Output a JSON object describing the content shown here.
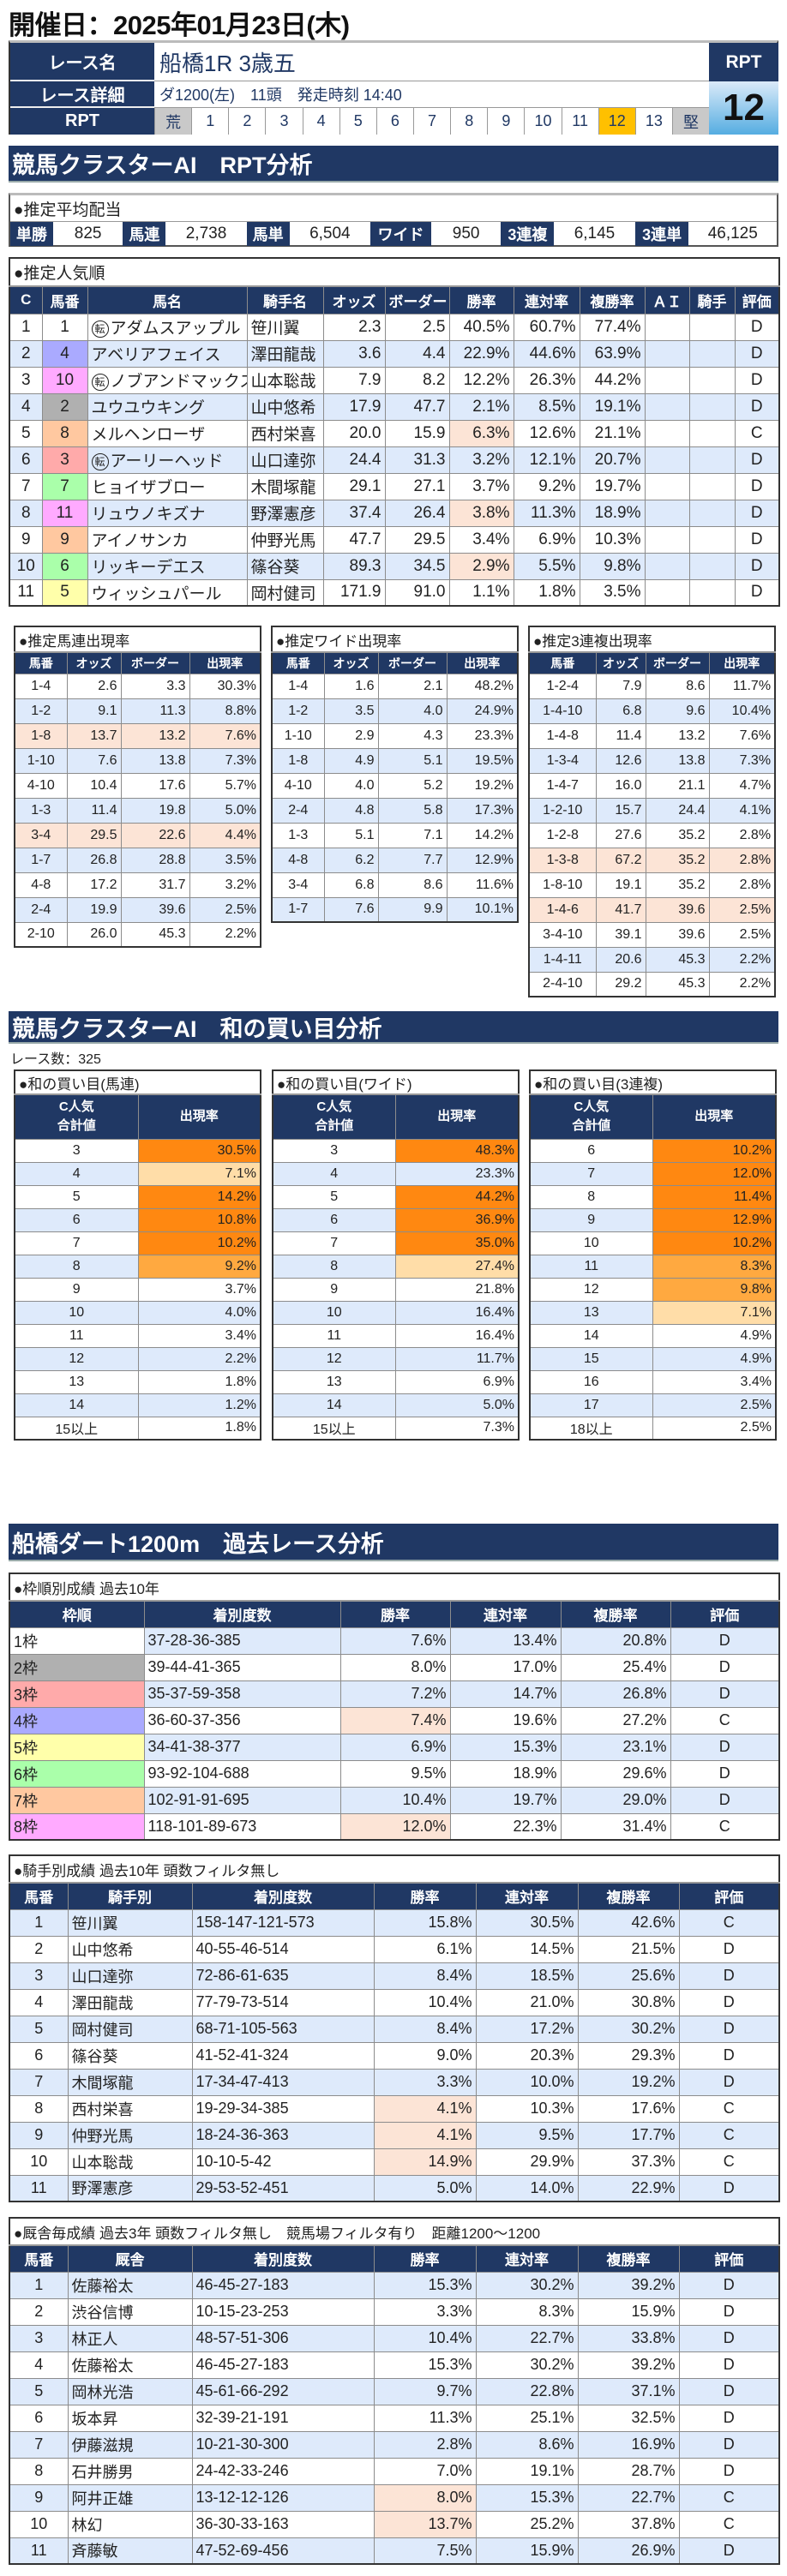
{
  "title": "開催日：2025年01月23日(木)",
  "race": {
    "label_name": "レース名",
    "name": "船橋1R 3歳五",
    "label_detail": "レース詳細",
    "detail": "ダ1200(左)　11頭　発走時刻 14:40",
    "label_rpt": "RPT",
    "scale": [
      "荒",
      "1",
      "2",
      "3",
      "4",
      "5",
      "6",
      "7",
      "8",
      "9",
      "10",
      "11",
      "12",
      "13",
      "堅"
    ],
    "selected": "12",
    "rpt_label": "RPT",
    "rpt_value": "12"
  },
  "colors": {
    "navy": "#203864",
    "stripe": "#deeafb",
    "highlight": "#fce4d6",
    "orange_dark": "#ff8811",
    "orange_mid": "#ffa940",
    "orange_light": "#ffdda8",
    "selected": "#ffc000",
    "frames": {
      "1": "#ffffff",
      "2": "#b0b0b0",
      "3": "#ffaaaa",
      "4": "#aaaaff",
      "5": "#ffffaa",
      "6": "#aaffaa",
      "7": "#ffc8a0",
      "8": "#ffaaff"
    }
  },
  "sections": {
    "rpt": "競馬クラスターAI　RPT分析",
    "sum": "競馬クラスターAI　和の買い目分析",
    "track": "船橋ダート1200m　過去レース分析"
  },
  "payout": {
    "title": "●推定平均配当",
    "items": [
      {
        "label": "単勝",
        "value": "825"
      },
      {
        "label": "馬連",
        "value": "2,738"
      },
      {
        "label": "馬単",
        "value": "6,504"
      },
      {
        "label": "ワイド",
        "value": "950"
      },
      {
        "label": "3連複",
        "value": "6,145"
      },
      {
        "label": "3連単",
        "value": "46,125"
      }
    ]
  },
  "popularity": {
    "title": "●推定人気順",
    "transfer_mark": "転",
    "transfer": [
      0,
      2,
      5
    ],
    "headers": [
      "C",
      "馬番",
      "馬名",
      "騎手名",
      "オッズ",
      "ボーダー",
      "勝率",
      "連対率",
      "複勝率",
      "ＡＩ",
      "騎手",
      "評価"
    ],
    "frames": [
      1,
      4,
      8,
      2,
      7,
      3,
      6,
      8,
      7,
      6,
      5
    ],
    "rows": [
      [
        "1",
        "1",
        "アダムスアップル",
        "笹川翼",
        "2.3",
        "2.5",
        "40.5%",
        "60.7%",
        "77.4%",
        "",
        "",
        "D"
      ],
      [
        "2",
        "4",
        "アベリアフェイス",
        "澤田龍哉",
        "3.6",
        "4.4",
        "22.9%",
        "44.6%",
        "63.9%",
        "",
        "",
        "D"
      ],
      [
        "3",
        "10",
        "ノブアンドマックス",
        "山本聡哉",
        "7.9",
        "8.2",
        "12.2%",
        "26.3%",
        "44.2%",
        "",
        "",
        "D"
      ],
      [
        "4",
        "2",
        "ユウユウキング",
        "山中悠希",
        "17.9",
        "47.7",
        "2.1%",
        "8.5%",
        "19.1%",
        "",
        "",
        "D"
      ],
      [
        "5",
        "8",
        "メルヘンローザ",
        "西村栄喜",
        "20.0",
        "15.9",
        "6.3%",
        "12.6%",
        "21.1%",
        "",
        "",
        "C"
      ],
      [
        "6",
        "3",
        "アーリーヘッド",
        "山口達弥",
        "24.4",
        "31.3",
        "3.2%",
        "12.1%",
        "20.7%",
        "",
        "",
        "D"
      ],
      [
        "7",
        "7",
        "ヒョイザブロー",
        "木間塚龍",
        "29.1",
        "27.1",
        "3.7%",
        "9.2%",
        "19.7%",
        "",
        "",
        "D"
      ],
      [
        "8",
        "11",
        "リュウノキズナ",
        "野澤憲彦",
        "37.4",
        "26.4",
        "3.8%",
        "11.3%",
        "18.9%",
        "",
        "",
        "D"
      ],
      [
        "9",
        "9",
        "アイノサンカ",
        "仲野光馬",
        "47.7",
        "29.5",
        "3.4%",
        "6.9%",
        "10.3%",
        "",
        "",
        "D"
      ],
      [
        "10",
        "6",
        "リッキーデエス",
        "篠谷葵",
        "89.3",
        "34.5",
        "2.9%",
        "5.5%",
        "9.8%",
        "",
        "",
        "D"
      ],
      [
        "11",
        "5",
        "ウィッシュパール",
        "岡村健司",
        "171.9",
        "91.0",
        "1.1%",
        "1.8%",
        "3.5%",
        "",
        "",
        "D"
      ]
    ],
    "hl": [
      [
        4,
        6
      ],
      [
        7,
        6
      ],
      [
        9,
        6
      ]
    ]
  },
  "quinella": {
    "title": "●推定馬連出現率",
    "headers": [
      "馬番",
      "オッズ",
      "ボーダー",
      "出現率"
    ],
    "rows": [
      [
        "1-4",
        "2.6",
        "3.3",
        "30.3%"
      ],
      [
        "1-2",
        "9.1",
        "11.3",
        "8.8%"
      ],
      [
        "1-8",
        "13.7",
        "13.2",
        "7.6%"
      ],
      [
        "1-10",
        "7.6",
        "13.8",
        "7.3%"
      ],
      [
        "4-10",
        "10.4",
        "17.6",
        "5.7%"
      ],
      [
        "1-3",
        "11.4",
        "19.8",
        "5.0%"
      ],
      [
        "3-4",
        "29.5",
        "22.6",
        "4.4%"
      ],
      [
        "1-7",
        "26.8",
        "28.8",
        "3.5%"
      ],
      [
        "4-8",
        "17.2",
        "31.7",
        "3.2%"
      ],
      [
        "2-4",
        "19.9",
        "39.6",
        "2.5%"
      ],
      [
        "2-10",
        "26.0",
        "45.3",
        "2.2%"
      ]
    ],
    "hl": [
      [
        2,
        -1
      ],
      [
        6,
        -1
      ]
    ]
  },
  "wide": {
    "title": "●推定ワイド出現率",
    "headers": [
      "馬番",
      "オッズ",
      "ボーダー",
      "出現率"
    ],
    "rows": [
      [
        "1-4",
        "1.6",
        "2.1",
        "48.2%"
      ],
      [
        "1-2",
        "3.5",
        "4.0",
        "24.9%"
      ],
      [
        "1-10",
        "2.9",
        "4.3",
        "23.3%"
      ],
      [
        "1-8",
        "4.9",
        "5.1",
        "19.5%"
      ],
      [
        "4-10",
        "4.0",
        "5.2",
        "19.2%"
      ],
      [
        "2-4",
        "4.8",
        "5.8",
        "17.3%"
      ],
      [
        "1-3",
        "5.1",
        "7.1",
        "14.2%"
      ],
      [
        "4-8",
        "6.2",
        "7.7",
        "12.9%"
      ],
      [
        "3-4",
        "6.8",
        "8.6",
        "11.6%"
      ],
      [
        "1-7",
        "7.6",
        "9.9",
        "10.1%"
      ]
    ],
    "hl": []
  },
  "trio": {
    "title": "●推定3連複出現率",
    "headers": [
      "馬番",
      "オッズ",
      "ボーダー",
      "出現率"
    ],
    "rows": [
      [
        "1-2-4",
        "7.9",
        "8.6",
        "11.7%"
      ],
      [
        "1-4-10",
        "6.8",
        "9.6",
        "10.4%"
      ],
      [
        "1-4-8",
        "11.4",
        "13.2",
        "7.6%"
      ],
      [
        "1-3-4",
        "12.6",
        "13.8",
        "7.3%"
      ],
      [
        "1-4-7",
        "16.0",
        "21.1",
        "4.7%"
      ],
      [
        "1-2-10",
        "15.7",
        "24.4",
        "4.1%"
      ],
      [
        "1-2-8",
        "27.6",
        "35.2",
        "2.8%"
      ],
      [
        "1-3-8",
        "67.2",
        "35.2",
        "2.8%"
      ],
      [
        "1-8-10",
        "19.1",
        "35.2",
        "2.8%"
      ],
      [
        "1-4-6",
        "41.7",
        "39.6",
        "2.5%"
      ],
      [
        "3-4-10",
        "39.1",
        "39.6",
        "2.5%"
      ],
      [
        "1-4-11",
        "20.6",
        "45.3",
        "2.2%"
      ],
      [
        "2-4-10",
        "29.2",
        "45.3",
        "2.2%"
      ]
    ],
    "hl": [
      [
        7,
        -1
      ],
      [
        9,
        -1
      ]
    ]
  },
  "race_count": "レース数：325",
  "sum_quinella": {
    "title": "●和の買い目(馬連)",
    "headers": [
      "C人気\n合計値",
      "出現率"
    ],
    "rows": [
      [
        "3",
        "30.5%"
      ],
      [
        "4",
        "7.1%"
      ],
      [
        "5",
        "14.2%"
      ],
      [
        "6",
        "10.8%"
      ],
      [
        "7",
        "10.2%"
      ],
      [
        "8",
        "9.2%"
      ],
      [
        "9",
        "3.7%"
      ],
      [
        "10",
        "4.0%"
      ],
      [
        "11",
        "3.4%"
      ],
      [
        "12",
        "2.2%"
      ],
      [
        "13",
        "1.8%"
      ],
      [
        "14",
        "1.2%"
      ],
      [
        "15以上",
        "1.8%"
      ]
    ],
    "levels": [
      "d",
      "l",
      "d",
      "d",
      "d",
      "m",
      "",
      "",
      "",
      "",
      "",
      "",
      ""
    ]
  },
  "sum_wide": {
    "title": "●和の買い目(ワイド)",
    "headers": [
      "C人気\n合計値",
      "出現率"
    ],
    "rows": [
      [
        "3",
        "48.3%"
      ],
      [
        "4",
        "23.3%"
      ],
      [
        "5",
        "44.2%"
      ],
      [
        "6",
        "36.9%"
      ],
      [
        "7",
        "35.0%"
      ],
      [
        "8",
        "27.4%"
      ],
      [
        "9",
        "21.8%"
      ],
      [
        "10",
        "16.4%"
      ],
      [
        "11",
        "16.4%"
      ],
      [
        "12",
        "11.7%"
      ],
      [
        "13",
        "6.9%"
      ],
      [
        "14",
        "5.0%"
      ],
      [
        "15以上",
        "7.3%"
      ]
    ],
    "levels": [
      "d",
      "",
      "d",
      "d",
      "d",
      "l",
      "",
      "",
      "",
      "",
      "",
      "",
      ""
    ]
  },
  "sum_trio": {
    "title": "●和の買い目(3連複)",
    "headers": [
      "C人気\n合計値",
      "出現率"
    ],
    "rows": [
      [
        "6",
        "10.2%"
      ],
      [
        "7",
        "12.0%"
      ],
      [
        "8",
        "11.4%"
      ],
      [
        "9",
        "12.9%"
      ],
      [
        "10",
        "10.2%"
      ],
      [
        "11",
        "8.3%"
      ],
      [
        "12",
        "9.8%"
      ],
      [
        "13",
        "7.1%"
      ],
      [
        "14",
        "4.9%"
      ],
      [
        "15",
        "4.9%"
      ],
      [
        "16",
        "3.4%"
      ],
      [
        "17",
        "2.5%"
      ],
      [
        "18以上",
        "2.5%"
      ]
    ],
    "levels": [
      "d",
      "d",
      "d",
      "d",
      "d",
      "m",
      "m",
      "l",
      "",
      "",
      "",
      "",
      ""
    ]
  },
  "frame_stats": {
    "title": "●枠順別成績 過去10年",
    "headers": [
      "枠順",
      "着別度数",
      "勝率",
      "連対率",
      "複勝率",
      "評価"
    ],
    "frames": [
      1,
      2,
      3,
      4,
      5,
      6,
      7,
      8
    ],
    "rows": [
      [
        "1枠",
        "37-28-36-385",
        "7.6%",
        "13.4%",
        "20.8%",
        "D"
      ],
      [
        "2枠",
        "39-44-41-365",
        "8.0%",
        "17.0%",
        "25.4%",
        "D"
      ],
      [
        "3枠",
        "35-37-59-358",
        "7.2%",
        "14.7%",
        "26.8%",
        "D"
      ],
      [
        "4枠",
        "36-60-37-356",
        "7.4%",
        "19.6%",
        "27.2%",
        "C"
      ],
      [
        "5枠",
        "34-41-38-377",
        "6.9%",
        "15.3%",
        "23.1%",
        "D"
      ],
      [
        "6枠",
        "93-92-104-688",
        "9.5%",
        "18.9%",
        "29.6%",
        "D"
      ],
      [
        "7枠",
        "102-91-91-695",
        "10.4%",
        "19.7%",
        "29.0%",
        "D"
      ],
      [
        "8枠",
        "118-101-89-673",
        "12.0%",
        "22.3%",
        "31.4%",
        "C"
      ]
    ],
    "hl": [
      [
        3,
        2
      ],
      [
        7,
        2
      ]
    ]
  },
  "jockey_stats": {
    "title": "●騎手別成績 過去10年 頭数フィルタ無し",
    "headers": [
      "馬番",
      "騎手別",
      "着別度数",
      "勝率",
      "連対率",
      "複勝率",
      "評価"
    ],
    "rows": [
      [
        "1",
        "笹川翼",
        "158-147-121-573",
        "15.8%",
        "30.5%",
        "42.6%",
        "C"
      ],
      [
        "2",
        "山中悠希",
        "40-55-46-514",
        "6.1%",
        "14.5%",
        "21.5%",
        "D"
      ],
      [
        "3",
        "山口達弥",
        "72-86-61-635",
        "8.4%",
        "18.5%",
        "25.6%",
        "D"
      ],
      [
        "4",
        "澤田龍哉",
        "77-79-73-514",
        "10.4%",
        "21.0%",
        "30.8%",
        "D"
      ],
      [
        "5",
        "岡村健司",
        "68-71-105-563",
        "8.4%",
        "17.2%",
        "30.2%",
        "D"
      ],
      [
        "6",
        "篠谷葵",
        "41-52-41-324",
        "9.0%",
        "20.3%",
        "29.3%",
        "D"
      ],
      [
        "7",
        "木間塚龍",
        "17-34-47-413",
        "3.3%",
        "10.0%",
        "19.2%",
        "D"
      ],
      [
        "8",
        "西村栄喜",
        "19-29-34-385",
        "4.1%",
        "10.3%",
        "17.6%",
        "C"
      ],
      [
        "9",
        "仲野光馬",
        "18-24-36-363",
        "4.1%",
        "9.5%",
        "17.7%",
        "C"
      ],
      [
        "10",
        "山本聡哉",
        "10-10-5-42",
        "14.9%",
        "29.9%",
        "37.3%",
        "C"
      ],
      [
        "11",
        "野澤憲彦",
        "29-53-52-451",
        "5.0%",
        "14.0%",
        "22.9%",
        "D"
      ]
    ],
    "hl": [
      [
        7,
        3
      ],
      [
        8,
        3
      ],
      [
        9,
        3
      ]
    ]
  },
  "trainer_stats": {
    "title": "●厩舎毎成績 過去3年 頭数フィルタ無し　競馬場フィルタ有り　距離1200～1200",
    "headers": [
      "馬番",
      "厩舎",
      "着別度数",
      "勝率",
      "連対率",
      "複勝率",
      "評価"
    ],
    "rows": [
      [
        "1",
        "佐藤裕太",
        "46-45-27-183",
        "15.3%",
        "30.2%",
        "39.2%",
        "D"
      ],
      [
        "2",
        "渋谷信博",
        "10-15-23-253",
        "3.3%",
        "8.3%",
        "15.9%",
        "D"
      ],
      [
        "3",
        "林正人",
        "48-57-51-306",
        "10.4%",
        "22.7%",
        "33.8%",
        "D"
      ],
      [
        "4",
        "佐藤裕太",
        "46-45-27-183",
        "15.3%",
        "30.2%",
        "39.2%",
        "D"
      ],
      [
        "5",
        "岡林光浩",
        "45-61-66-292",
        "9.7%",
        "22.8%",
        "37.1%",
        "D"
      ],
      [
        "6",
        "坂本昇",
        "32-39-21-191",
        "11.3%",
        "25.1%",
        "32.5%",
        "D"
      ],
      [
        "7",
        "伊藤滋規",
        "10-21-30-300",
        "2.8%",
        "8.6%",
        "16.9%",
        "D"
      ],
      [
        "8",
        "石井勝男",
        "24-42-33-246",
        "7.0%",
        "19.1%",
        "28.7%",
        "D"
      ],
      [
        "9",
        "阿井正雄",
        "13-12-12-126",
        "8.0%",
        "15.3%",
        "22.7%",
        "C"
      ],
      [
        "10",
        "林幻",
        "36-30-33-163",
        "13.7%",
        "25.2%",
        "37.8%",
        "C"
      ],
      [
        "11",
        "斉藤敏",
        "47-52-69-456",
        "7.5%",
        "15.9%",
        "26.9%",
        "D"
      ]
    ],
    "hl": [
      [
        8,
        3
      ],
      [
        9,
        3
      ]
    ]
  }
}
